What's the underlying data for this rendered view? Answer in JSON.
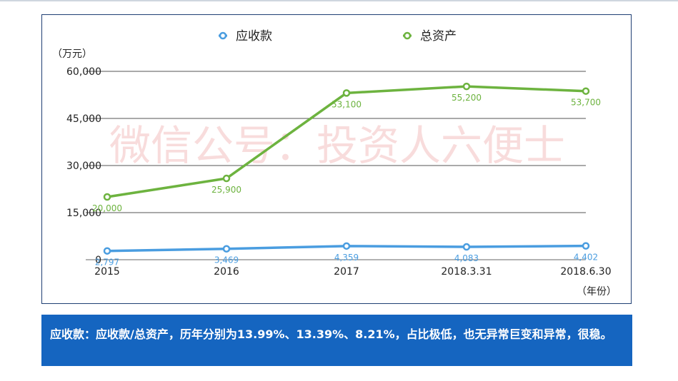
{
  "chart_data": {
    "type": "line",
    "categories": [
      "2015",
      "2016",
      "2017",
      "2018.3.31",
      "2018.6.30"
    ],
    "ylim": [
      0,
      60000
    ],
    "yticks": [
      "0",
      "15,000",
      "30,000",
      "45,000",
      "60,000"
    ],
    "ylabel": "（万元）",
    "xlabel": "（年份）",
    "legend_placement": "top",
    "grid": true,
    "series": [
      {
        "name": "应收款",
        "color": "#4a9de0",
        "values": [
          2797,
          3469,
          4359,
          4083,
          4402
        ],
        "labels": [
          "2,797",
          "3,469",
          "4,359",
          "4,083",
          "4,402"
        ]
      },
      {
        "name": "总资产",
        "color": "#6db33f",
        "values": [
          20000,
          25900,
          53100,
          55200,
          53700
        ],
        "labels": [
          "20,000",
          "25,900",
          "53,100",
          "55,200",
          "53,700"
        ]
      }
    ]
  },
  "watermark": "微信公号：投资人六便士",
  "note": "应收款：应收款/总资产，历年分别为13.99%、13.39%、8.21%，占比极低，也无异常巨变和异常，很稳。"
}
